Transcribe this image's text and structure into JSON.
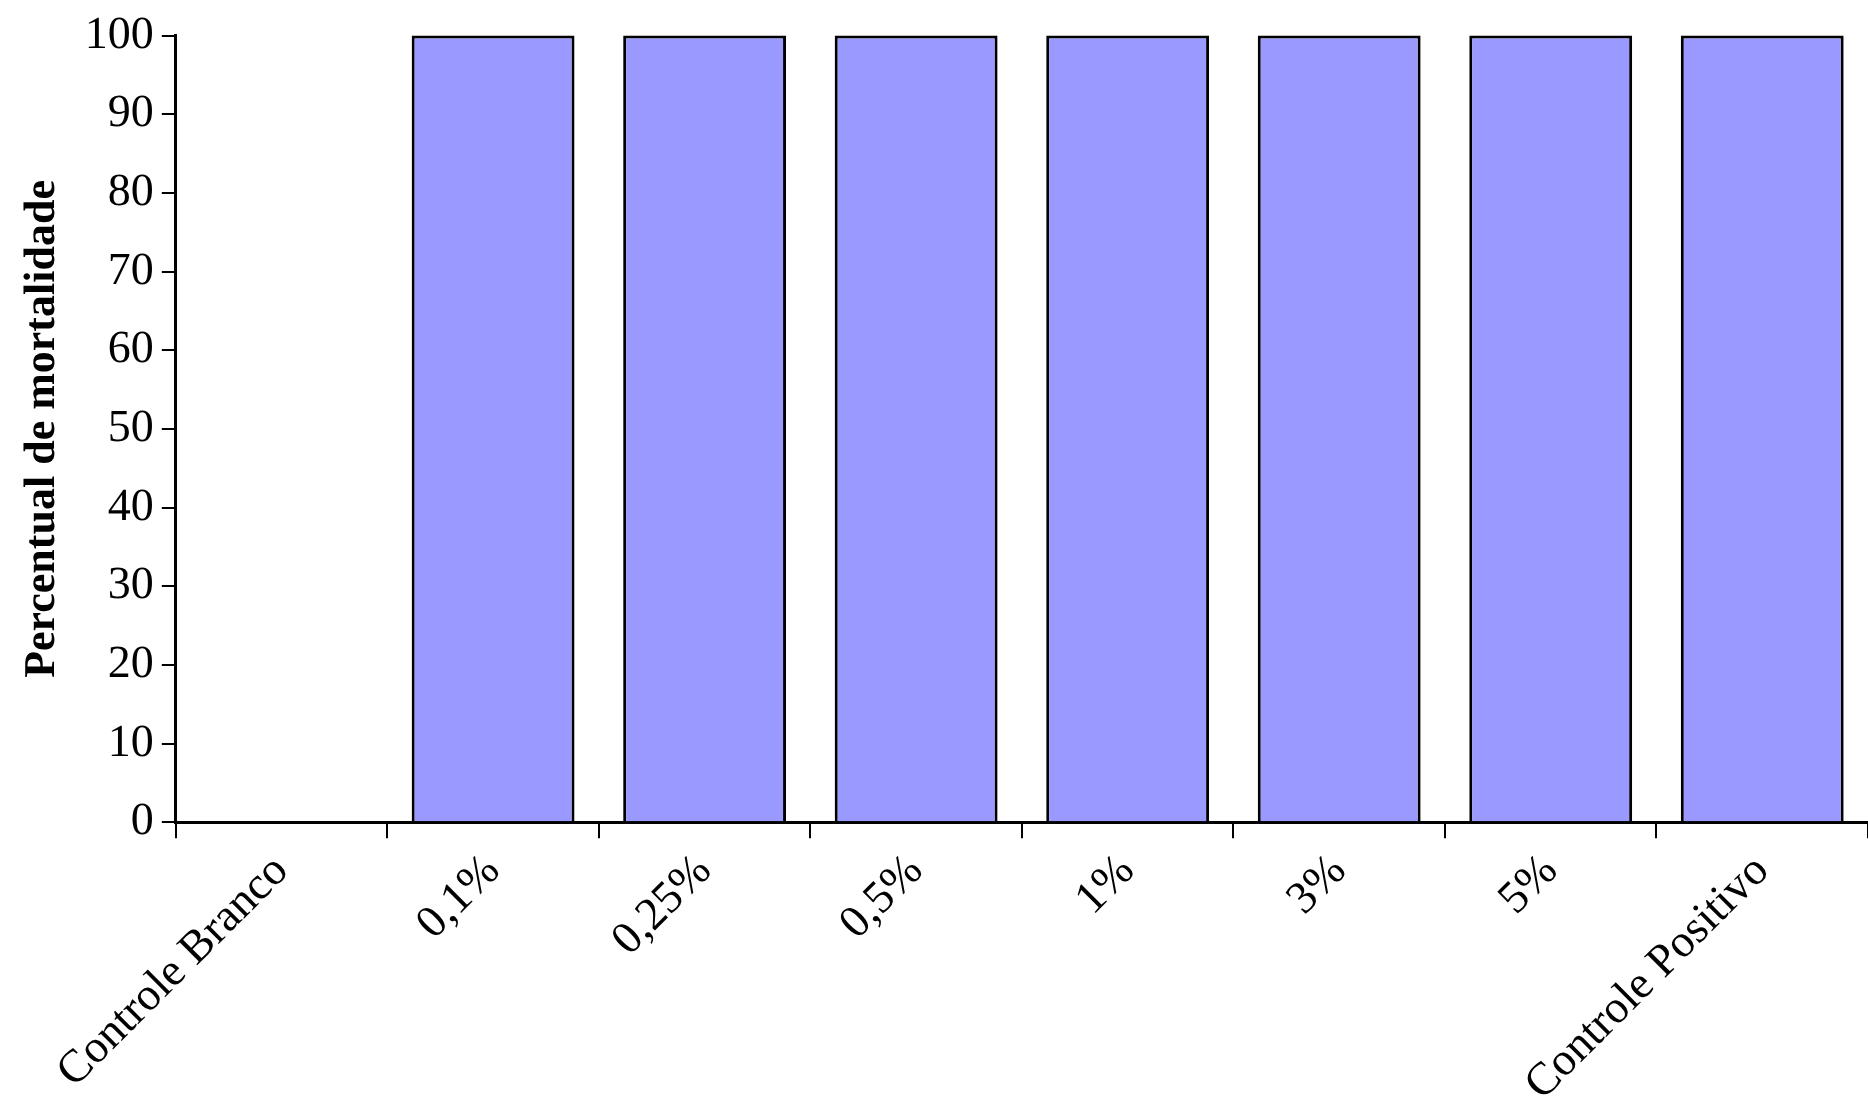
{
  "chart_data": {
    "type": "bar",
    "ylabel": "Percentual de mortalidade",
    "categories": [
      "Controle Branco",
      "0,1%",
      "0,25%",
      "0,5%",
      "1%",
      "3%",
      "5%",
      "Controle Positivo"
    ],
    "values": [
      0,
      100,
      100,
      100,
      100,
      100,
      100,
      100
    ],
    "color": "#9999ff",
    "ylim": [
      0,
      100
    ],
    "yticks": [
      0,
      10,
      20,
      30,
      40,
      50,
      60,
      70,
      80,
      90,
      100
    ]
  }
}
